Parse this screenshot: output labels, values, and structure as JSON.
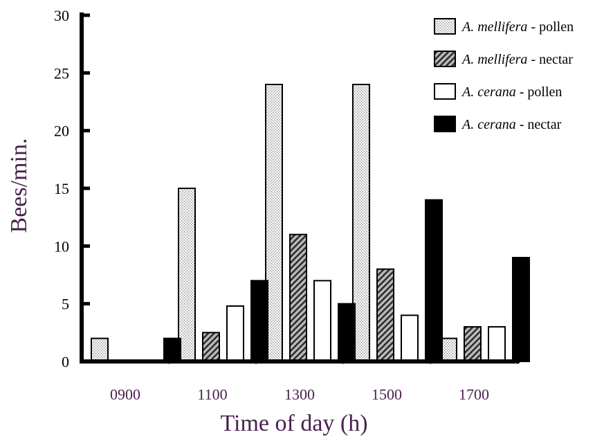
{
  "chart_data": {
    "type": "bar",
    "xlabel": "Time of day (h)",
    "ylabel": "Bees/min.",
    "categories": [
      "0900",
      "1100",
      "1300",
      "1500",
      "1700"
    ],
    "ylim": [
      0,
      30
    ],
    "yticks": [
      "0",
      "5",
      "10",
      "15",
      "20",
      "25",
      "30"
    ],
    "series": [
      {
        "name": "A. mellifera - pollen",
        "species": "A. mellifera",
        "resource": " - pollen",
        "pattern": "dotted",
        "values": [
          2,
          15,
          24,
          24,
          2
        ]
      },
      {
        "name": "A. mellifera - nectar",
        "species": "A. mellifera",
        "resource": " - nectar",
        "pattern": "hatched",
        "values": [
          0,
          2.5,
          11,
          8,
          3
        ]
      },
      {
        "name": "A. cerana - pollen",
        "species": "A. cerana",
        "resource": " - pollen",
        "pattern": "white",
        "values": [
          0,
          4.8,
          7,
          4,
          3
        ]
      },
      {
        "name": "A. cerana - nectar",
        "species": "A. cerana",
        "resource": " - nectar",
        "pattern": "black",
        "values": [
          2,
          7,
          5,
          14,
          9
        ]
      }
    ],
    "legend_position": "top-right",
    "grid": false
  }
}
